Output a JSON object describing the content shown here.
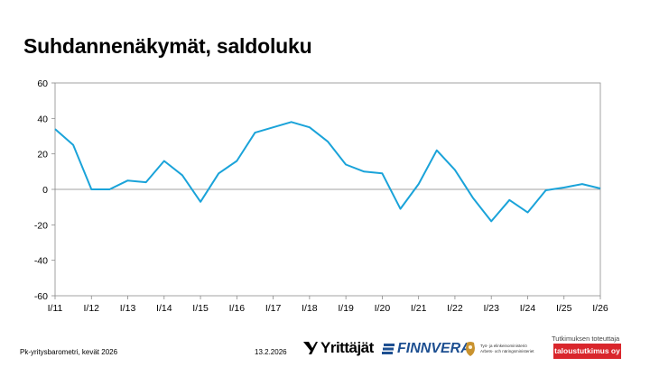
{
  "title": "Suhdannenäkymät, saldoluku",
  "footer": {
    "source": "Pk-yritysbarometri, kevät 2026",
    "date": "13.2.2026",
    "research_label": "Tutkimuksen toteuttaja"
  },
  "logos": {
    "yrittajat": "Yrittäjät",
    "finnvera": "FINNVERA",
    "tem_line1": "Työ- ja elinkeinoministeriö",
    "tem_line2": "Arbets- och näringsministeriet",
    "research_company": "taloustutkimus oy"
  },
  "colors": {
    "series": "#1aa3d9",
    "axis": "#888888",
    "plot_border": "#8c8c8c",
    "zero_line": "#808080",
    "research_badge": "#d9262c"
  },
  "chart_data": {
    "type": "line",
    "title": "Suhdannenäkymät, saldoluku",
    "xlabel": "",
    "ylabel": "",
    "ylim": [
      -60,
      60
    ],
    "yticks": [
      60,
      40,
      20,
      0,
      -20,
      -40,
      -60
    ],
    "grid": false,
    "categories": [
      "I/11",
      "I/12",
      "I/13",
      "I/14",
      "I/15",
      "I/16",
      "I/17",
      "I/18",
      "I/19",
      "I/20",
      "I/21",
      "I/22",
      "I/23",
      "I/24",
      "I/25",
      "I/26"
    ],
    "series": [
      {
        "name": "",
        "x": [
          0,
          0.5,
          1,
          1.5,
          2,
          2.5,
          3,
          3.5,
          4,
          4.5,
          5,
          5.5,
          6,
          6.5,
          7,
          7.5,
          8,
          8.5,
          9,
          9.5,
          10,
          10.5,
          11,
          11.5,
          12,
          12.5,
          13,
          13.5,
          14,
          14.5,
          15
        ],
        "values": [
          34,
          25,
          0,
          0,
          5,
          4,
          16,
          8,
          -7,
          9,
          16,
          32,
          35,
          38,
          35,
          27,
          14,
          10,
          9,
          -11,
          3,
          22,
          11,
          -5,
          -18,
          -6,
          -13,
          -0.5,
          1,
          3,
          0.5
        ]
      }
    ]
  }
}
